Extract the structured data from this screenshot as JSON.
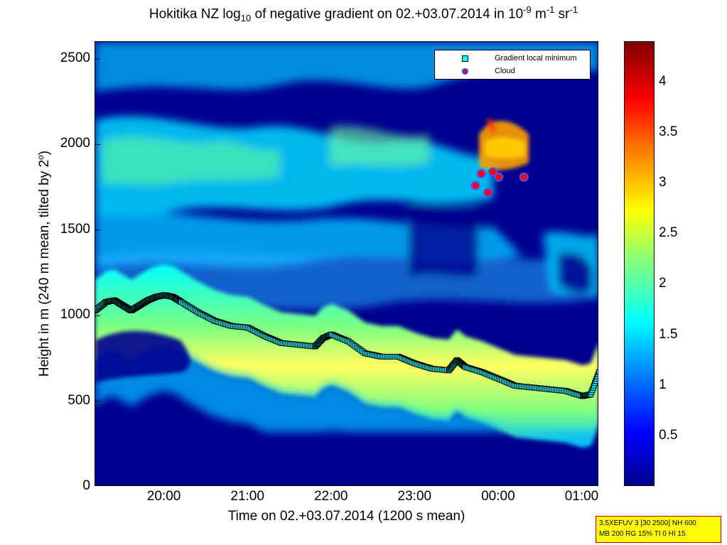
{
  "title": {
    "prefix": "Hokitika NZ log",
    "sub": "10",
    "middle": " of negative gradient on 02.+03.07.2014 in 10",
    "sup1": "-9",
    "unit1": " m",
    "sup2": "-1",
    "unit2": " sr",
    "sup3": "-1"
  },
  "xlabel": "Time on 02.+03.07.2014 (1200 s mean)",
  "ylabel": {
    "main": "Height in m (240 m mean, tilted by 2",
    "sup": "o",
    "end": ")"
  },
  "legend": {
    "placement": "top-right",
    "entries": [
      {
        "label": "Gradient local minimum",
        "color": "#00ffff",
        "marker": "square"
      },
      {
        "label": "Cloud",
        "color": "#ff0000",
        "marker": "circle"
      }
    ]
  },
  "infobox": {
    "line1": "3.5XEFUV 3 [30 2500] NH 600",
    "line2": "MB 200 RG 15% TI 0 HI 15"
  },
  "chart_data": {
    "type": "heatmap",
    "title": "Hokitika NZ log10 of negative gradient on 02.+03.07.2014 in 10^-9 m^-1 sr^-1",
    "xlabel": "Time on 02.+03.07.2014 (1200 s mean)",
    "ylabel": "Height in m (240 m mean, tilted by 2°)",
    "xlim": [
      19.17,
      25.2
    ],
    "ylim": [
      0,
      2600
    ],
    "x_ticks": [
      {
        "value": 20,
        "label": "20:00"
      },
      {
        "value": 21,
        "label": "21:00"
      },
      {
        "value": 22,
        "label": "22:00"
      },
      {
        "value": 23,
        "label": "23:00"
      },
      {
        "value": 24,
        "label": "00:00"
      },
      {
        "value": 25,
        "label": "01:00"
      }
    ],
    "y_ticks": [
      0,
      500,
      1000,
      1500,
      2000,
      2500
    ],
    "colorbar": {
      "range": [
        0,
        4.4
      ],
      "ticks": [
        0.5,
        1,
        1.5,
        2,
        2.5,
        3,
        3.5,
        4
      ],
      "colormap": "jet"
    },
    "series": [
      {
        "name": "Gradient local minimum",
        "x": [
          19.17,
          19.3,
          19.4,
          19.5,
          19.6,
          19.7,
          19.8,
          19.9,
          20.0,
          20.1,
          20.2,
          20.4,
          20.6,
          20.8,
          21.0,
          21.2,
          21.4,
          21.6,
          21.8,
          21.9,
          22.0,
          22.2,
          22.4,
          22.6,
          22.8,
          23.0,
          23.2,
          23.4,
          23.5,
          23.6,
          23.8,
          24.0,
          24.2,
          24.4,
          24.6,
          24.8,
          25.0,
          25.1,
          25.2
        ],
        "y": [
          1030,
          1080,
          1090,
          1060,
          1030,
          1060,
          1090,
          1110,
          1120,
          1110,
          1080,
          1020,
          970,
          940,
          930,
          880,
          840,
          830,
          820,
          870,
          890,
          850,
          780,
          760,
          760,
          720,
          690,
          680,
          740,
          700,
          670,
          630,
          590,
          580,
          570,
          560,
          530,
          540,
          670
        ]
      },
      {
        "name": "Cloud",
        "x": [
          23.72,
          23.79,
          23.87,
          23.93,
          24.0,
          24.3
        ],
        "y": [
          1760,
          1830,
          1720,
          1840,
          1810,
          1810
        ]
      }
    ]
  }
}
